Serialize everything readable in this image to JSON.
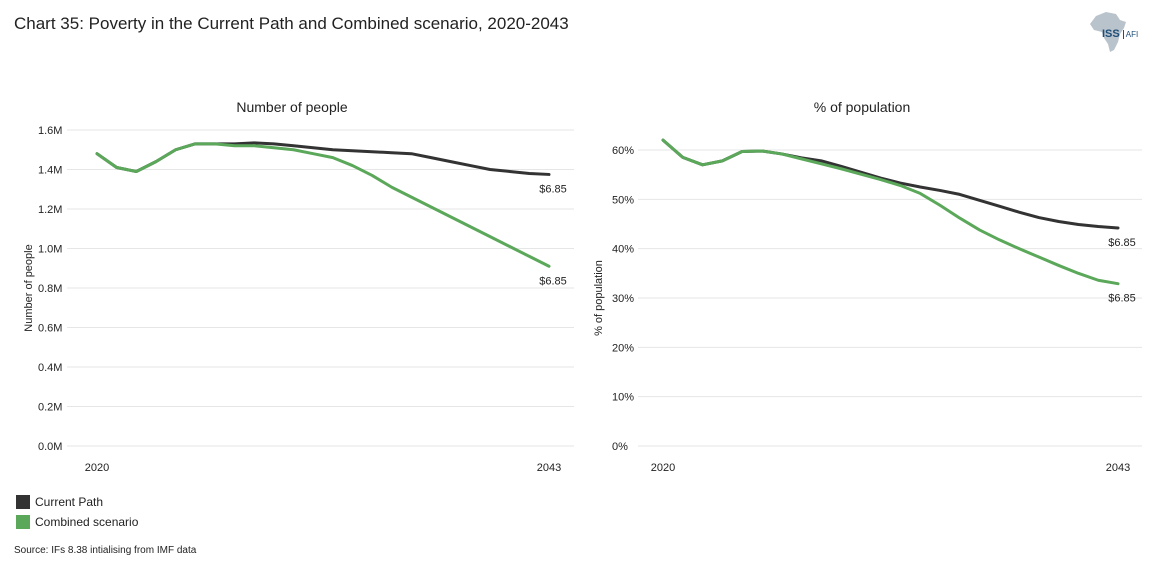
{
  "page": {
    "title": "Chart 35: Poverty in the Current Path and Combined scenario, 2020-2043",
    "source": "Source: IFs 8.38 intialising from IMF data",
    "logo_text": "ISS",
    "logo_subtext": "AFI"
  },
  "colors": {
    "current_path": "#333333",
    "combined": "#5ba85a",
    "gridline": "#e6e6e6",
    "logo_map": "#b9c3cc",
    "logo_text": "#1f4e79"
  },
  "legend": [
    {
      "label": "Current Path",
      "color": "#333333"
    },
    {
      "label": "Combined scenario",
      "color": "#5ba85a"
    }
  ],
  "chart_data": [
    {
      "type": "line",
      "title": "Number of people",
      "ylabel": "Number of people",
      "xlabel": "",
      "x": [
        2020,
        2021,
        2022,
        2023,
        2024,
        2025,
        2026,
        2027,
        2028,
        2029,
        2030,
        2031,
        2032,
        2033,
        2034,
        2035,
        2036,
        2037,
        2038,
        2039,
        2040,
        2041,
        2042,
        2043
      ],
      "x_tick_labels": [
        "2020",
        "2043"
      ],
      "ylim": [
        0,
        1.6
      ],
      "y_ticks": [
        0,
        0.2,
        0.4,
        0.6,
        0.8,
        1.0,
        1.2,
        1.4,
        1.6
      ],
      "y_tick_labels": [
        "0.0M",
        "0.2M",
        "0.4M",
        "0.6M",
        "0.8M",
        "1.0M",
        "1.2M",
        "1.4M",
        "1.6M"
      ],
      "grid": true,
      "series": [
        {
          "name": "Current Path",
          "color": "#333333",
          "end_label": "$6.85",
          "values": [
            1.48,
            1.41,
            1.39,
            1.44,
            1.5,
            1.53,
            1.53,
            1.53,
            1.535,
            1.53,
            1.52,
            1.51,
            1.5,
            1.495,
            1.49,
            1.485,
            1.48,
            1.46,
            1.44,
            1.42,
            1.4,
            1.39,
            1.38,
            1.375
          ]
        },
        {
          "name": "Combined scenario",
          "color": "#5ba85a",
          "end_label": "$6.85",
          "values": [
            1.48,
            1.41,
            1.39,
            1.44,
            1.5,
            1.53,
            1.53,
            1.52,
            1.52,
            1.51,
            1.5,
            1.48,
            1.46,
            1.42,
            1.37,
            1.31,
            1.26,
            1.21,
            1.16,
            1.11,
            1.06,
            1.01,
            0.96,
            0.91
          ]
        }
      ]
    },
    {
      "type": "line",
      "title": "% of population",
      "ylabel": "% of population",
      "xlabel": "",
      "x": [
        2020,
        2021,
        2022,
        2023,
        2024,
        2025,
        2026,
        2027,
        2028,
        2029,
        2030,
        2031,
        2032,
        2033,
        2034,
        2035,
        2036,
        2037,
        2038,
        2039,
        2040,
        2041,
        2042,
        2043
      ],
      "x_tick_labels": [
        "2020",
        "2043"
      ],
      "ylim": [
        0,
        60
      ],
      "y_ticks": [
        0,
        10,
        20,
        30,
        40,
        50,
        60
      ],
      "y_tick_labels": [
        "0%",
        "10%",
        "20%",
        "30%",
        "40%",
        "50%",
        "60%"
      ],
      "grid": true,
      "series": [
        {
          "name": "Current Path",
          "color": "#333333",
          "end_label": "$6.85",
          "values": [
            62.0,
            58.5,
            57.0,
            57.8,
            59.7,
            59.8,
            59.2,
            58.4,
            57.8,
            56.7,
            55.5,
            54.3,
            53.3,
            52.5,
            51.8,
            51.0,
            49.8,
            48.6,
            47.4,
            46.3,
            45.5,
            44.9,
            44.5,
            44.2
          ]
        },
        {
          "name": "Combined scenario",
          "color": "#5ba85a",
          "end_label": "$6.85",
          "values": [
            62.0,
            58.5,
            57.0,
            57.8,
            59.7,
            59.8,
            59.2,
            58.2,
            57.2,
            56.2,
            55.1,
            54.0,
            52.8,
            51.2,
            48.8,
            46.2,
            43.8,
            41.8,
            40.0,
            38.3,
            36.6,
            35.0,
            33.6,
            32.9
          ]
        }
      ]
    }
  ]
}
